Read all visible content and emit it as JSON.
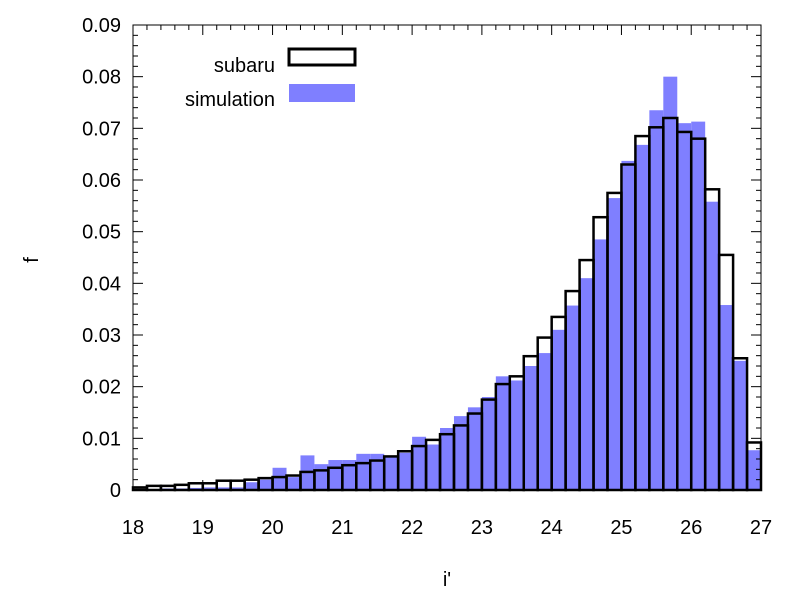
{
  "chart_data": {
    "type": "bar",
    "xlabel": "i'",
    "ylabel": "f",
    "xlim": [
      18,
      27
    ],
    "ylim": [
      0,
      0.09
    ],
    "bin_width": 0.2,
    "x_ticks": [
      18,
      19,
      20,
      21,
      22,
      23,
      24,
      25,
      26,
      27
    ],
    "x_tick_labels": [
      "18",
      "19",
      "20",
      "21",
      "22",
      "23",
      "24",
      "25",
      "26",
      "27"
    ],
    "y_ticks": [
      0,
      0.01,
      0.02,
      0.03,
      0.04,
      0.05,
      0.06,
      0.07,
      0.08,
      0.09
    ],
    "y_tick_labels": [
      "0",
      "0.01",
      "0.02",
      "0.03",
      "0.04",
      "0.05",
      "0.06",
      "0.07",
      "0.08",
      "0.09"
    ],
    "grid": false,
    "legend_position": "top-left",
    "bin_starts": [
      18.0,
      18.2,
      18.4,
      18.6,
      18.8,
      19.0,
      19.2,
      19.4,
      19.6,
      19.8,
      20.0,
      20.2,
      20.4,
      20.6,
      20.8,
      21.0,
      21.2,
      21.4,
      21.6,
      21.8,
      22.0,
      22.2,
      22.4,
      22.6,
      22.8,
      23.0,
      23.2,
      23.4,
      23.6,
      23.8,
      24.0,
      24.2,
      24.4,
      24.6,
      24.8,
      25.0,
      25.2,
      25.4,
      25.6,
      25.8,
      26.0,
      26.2,
      26.4,
      26.6,
      26.8
    ],
    "series": [
      {
        "name": "simulation",
        "color": "#7f7fff",
        "style": "filled",
        "values": [
          0.0002,
          0.0002,
          0.0003,
          0.0003,
          0.0004,
          0.0005,
          0.0005,
          0.0005,
          0.0015,
          0.002,
          0.0043,
          0.0025,
          0.0067,
          0.005,
          0.0058,
          0.0058,
          0.007,
          0.007,
          0.0065,
          0.0072,
          0.0103,
          0.0088,
          0.012,
          0.0143,
          0.016,
          0.018,
          0.022,
          0.0212,
          0.024,
          0.0265,
          0.031,
          0.0357,
          0.041,
          0.0485,
          0.0565,
          0.0637,
          0.0668,
          0.0735,
          0.08,
          0.071,
          0.0713,
          0.0558,
          0.0358,
          0.025,
          0.0077
        ]
      },
      {
        "name": "subaru",
        "color": "#000000",
        "style": "outline",
        "values": [
          0.0005,
          0.0008,
          0.0008,
          0.001,
          0.0013,
          0.0013,
          0.0018,
          0.0018,
          0.002,
          0.0023,
          0.0025,
          0.0028,
          0.0035,
          0.0038,
          0.0043,
          0.0048,
          0.0052,
          0.0057,
          0.0065,
          0.0075,
          0.0085,
          0.0097,
          0.0108,
          0.0125,
          0.0148,
          0.0175,
          0.0205,
          0.022,
          0.0259,
          0.0295,
          0.0335,
          0.0385,
          0.0445,
          0.0528,
          0.0575,
          0.063,
          0.0685,
          0.0702,
          0.072,
          0.0693,
          0.068,
          0.0582,
          0.0455,
          0.0255,
          0.0092
        ]
      }
    ]
  }
}
